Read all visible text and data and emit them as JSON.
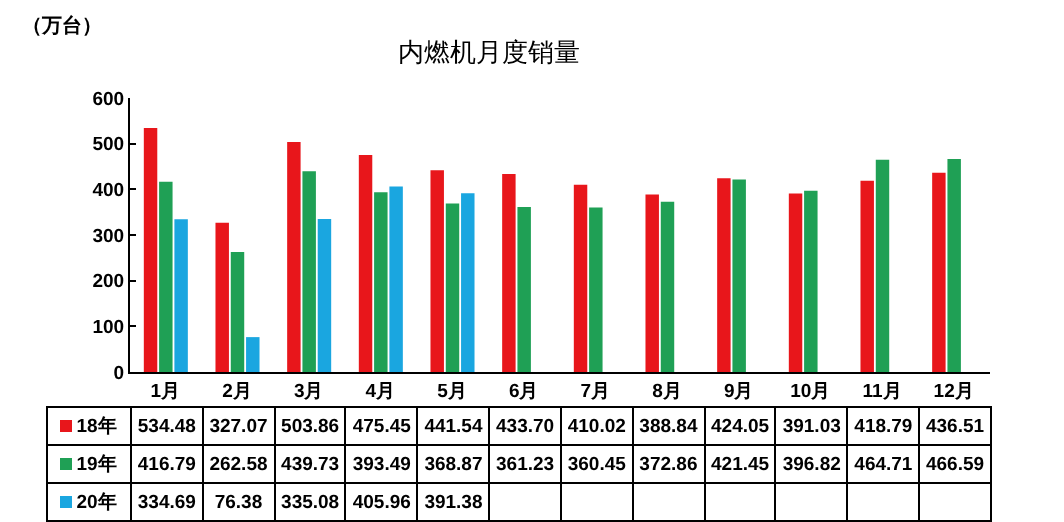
{
  "chart_data": {
    "type": "bar",
    "title": "内燃机月度销量",
    "ylabel": "（万台）",
    "categories": [
      "1月",
      "2月",
      "3月",
      "4月",
      "5月",
      "6月",
      "7月",
      "8月",
      "9月",
      "10月",
      "11月",
      "12月"
    ],
    "series": [
      {
        "name": "18年",
        "color": "#e8161b",
        "values": [
          534.48,
          327.07,
          503.86,
          475.45,
          441.54,
          433.7,
          410.02,
          388.84,
          424.05,
          391.03,
          418.79,
          436.51
        ],
        "value_labels": [
          "534.48",
          "327.07",
          "503.86",
          "475.45",
          "441.54",
          "433.70",
          "410.02",
          "388.84",
          "424.05",
          "391.03",
          "418.79",
          "436.51"
        ]
      },
      {
        "name": "19年",
        "color": "#1fa055",
        "values": [
          416.79,
          262.58,
          439.73,
          393.49,
          368.87,
          361.23,
          360.45,
          372.86,
          421.45,
          396.82,
          464.71,
          466.59
        ],
        "value_labels": [
          "416.79",
          "262.58",
          "439.73",
          "393.49",
          "368.87",
          "361.23",
          "360.45",
          "372.86",
          "421.45",
          "396.82",
          "464.71",
          "466.59"
        ]
      },
      {
        "name": "20年",
        "color": "#1aa6e0",
        "values": [
          334.69,
          76.38,
          335.08,
          405.96,
          391.38,
          null,
          null,
          null,
          null,
          null,
          null,
          null
        ],
        "value_labels": [
          "334.69",
          "76.38",
          "335.08",
          "405.96",
          "391.38",
          null,
          null,
          null,
          null,
          null,
          null,
          null
        ]
      }
    ],
    "ylim": [
      0,
      600
    ],
    "yticks": [
      0,
      100,
      200,
      300,
      400,
      500,
      600
    ],
    "grid": false,
    "legend": "bottom"
  }
}
